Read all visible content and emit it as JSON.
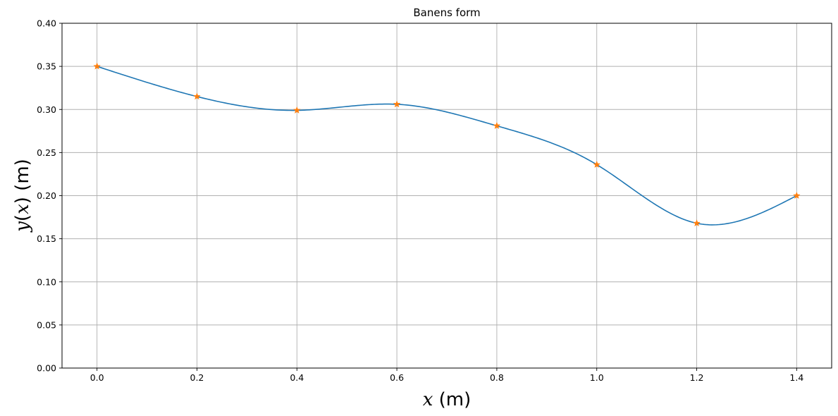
{
  "chart_data": {
    "type": "line",
    "title": "Banens form",
    "xlabel": {
      "var": "x",
      "unit": " (m)"
    },
    "ylabel": {
      "func": "y",
      "open": "(",
      "var": "x",
      "close": ")",
      "unit": " (m)"
    },
    "xlim": [
      -0.07,
      1.47
    ],
    "ylim": [
      0,
      0.4
    ],
    "xticks": [
      "0.0",
      "0.2",
      "0.4",
      "0.6",
      "0.8",
      "1.0",
      "1.2",
      "1.4"
    ],
    "xtick_values": [
      0,
      0.2,
      0.4,
      0.6,
      0.8,
      1.0,
      1.2,
      1.4
    ],
    "yticks": [
      "0.00",
      "0.05",
      "0.10",
      "0.15",
      "0.20",
      "0.25",
      "0.30",
      "0.35",
      "0.40"
    ],
    "ytick_values": [
      0,
      0.05,
      0.1,
      0.15,
      0.2,
      0.25,
      0.3,
      0.35,
      0.4
    ],
    "grid": true,
    "series": [
      {
        "kind": "spline-curve",
        "color": "#1f77b4",
        "x": [
          0,
          0.2,
          0.4,
          0.6,
          0.8,
          1.0,
          1.2,
          1.4
        ],
        "y": [
          0.35,
          0.315,
          0.299,
          0.306,
          0.281,
          0.236,
          0.168,
          0.2
        ]
      },
      {
        "kind": "markers",
        "marker": "star",
        "color": "#ff7f0e",
        "x": [
          0,
          0.2,
          0.4,
          0.6,
          0.8,
          1.0,
          1.2,
          1.4
        ],
        "y": [
          0.35,
          0.315,
          0.299,
          0.306,
          0.281,
          0.236,
          0.168,
          0.2
        ]
      }
    ]
  }
}
